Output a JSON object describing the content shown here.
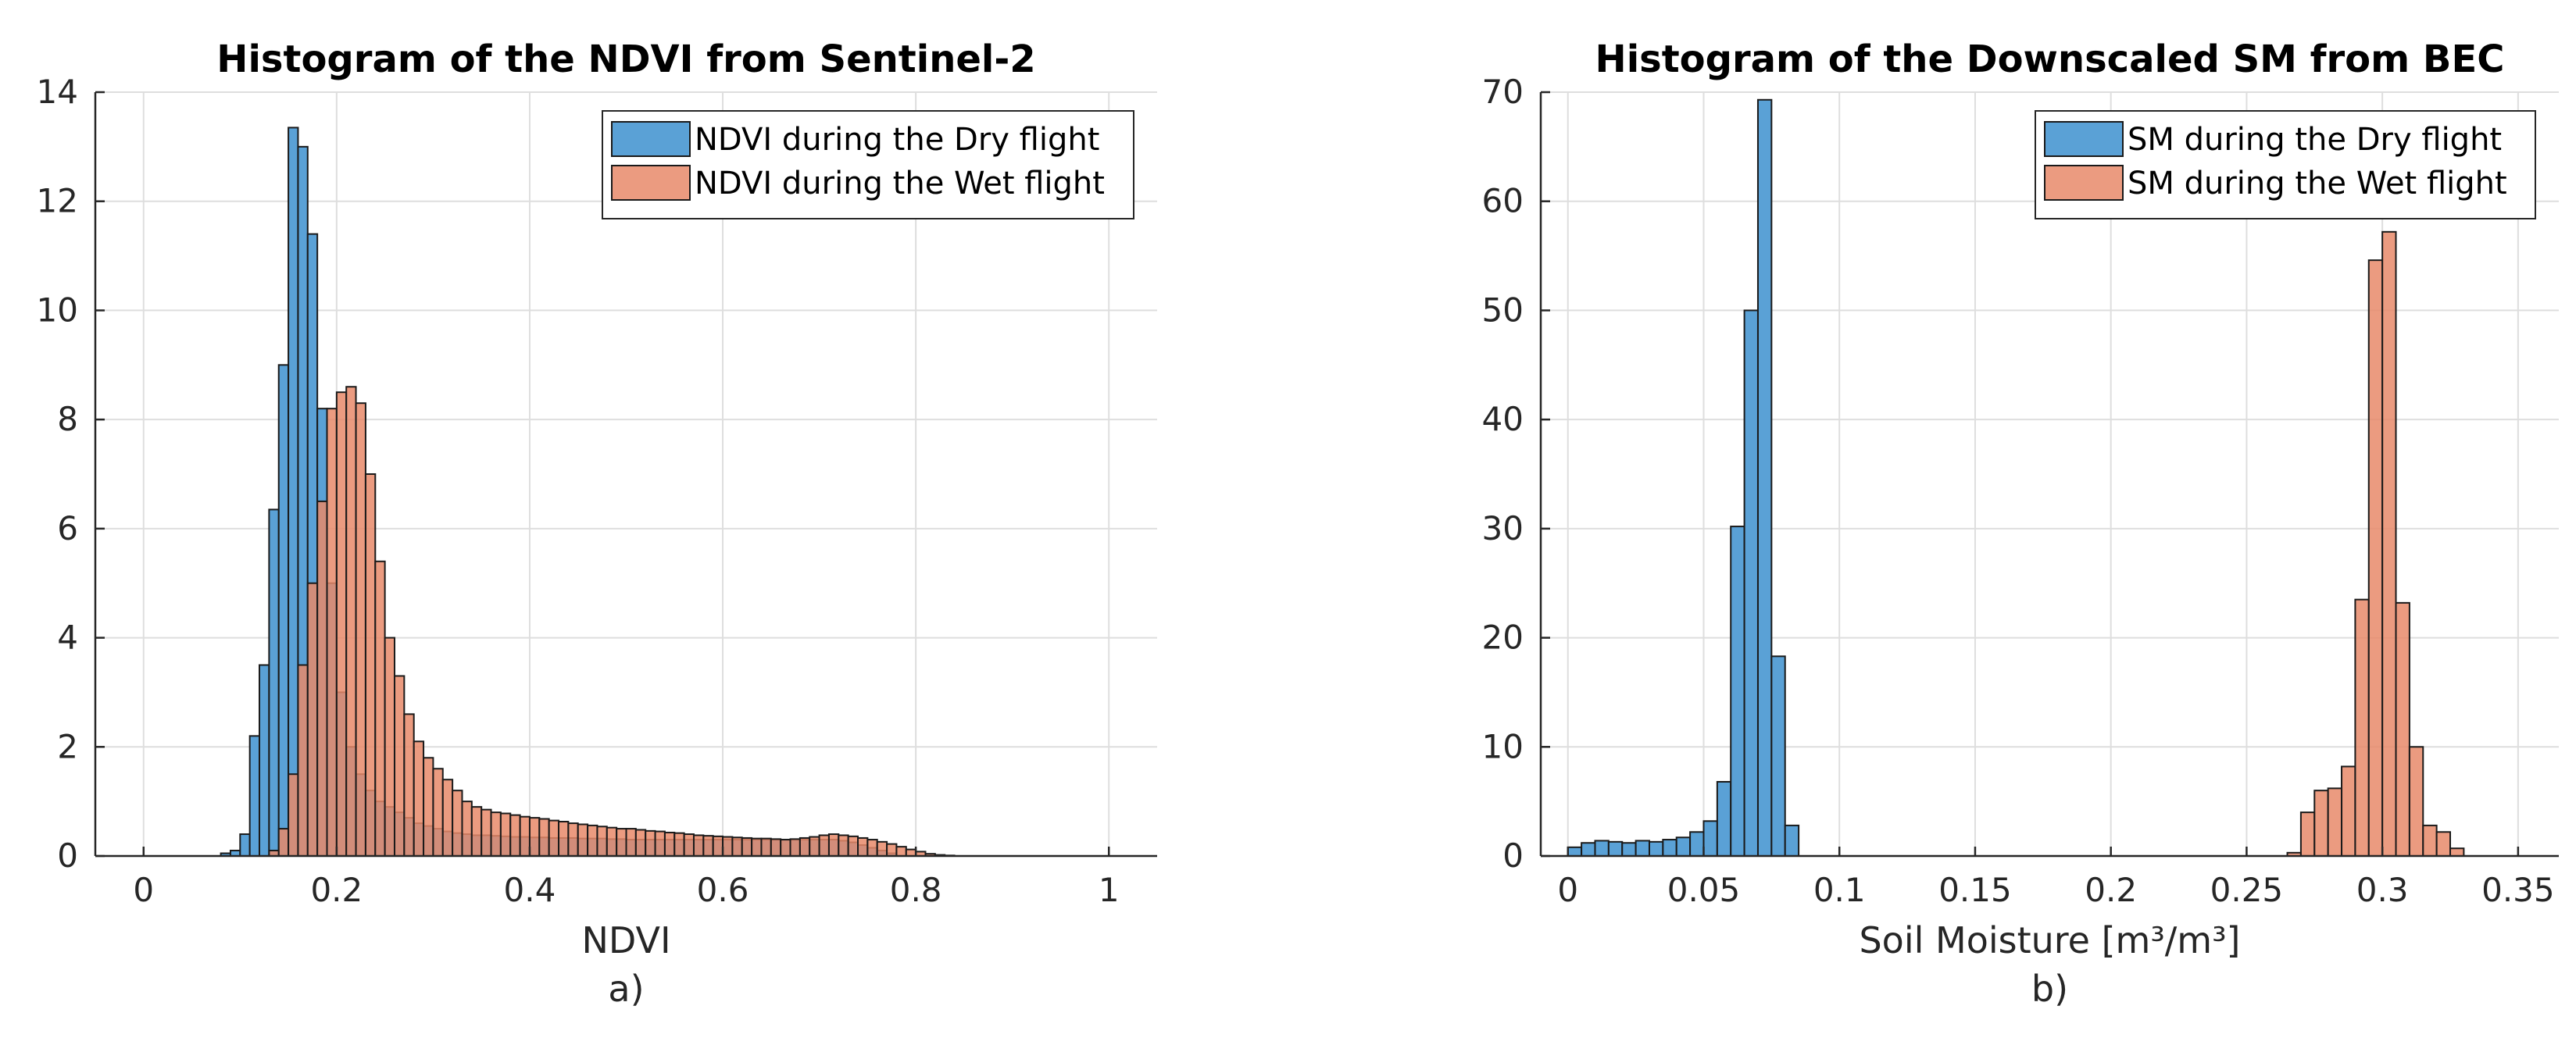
{
  "chart_data": [
    {
      "type": "bar",
      "chart_kind": "histogram",
      "title": "Histogram of the NDVI from Sentinel-2",
      "xlabel": "NDVI",
      "panel_label": "a)",
      "xlim": [
        -0.05,
        1.05
      ],
      "ylim": [
        0,
        14
      ],
      "xticks": [
        0,
        0.2,
        0.4,
        0.6,
        0.8,
        1
      ],
      "xtick_labels": [
        "0",
        "0.2",
        "0.4",
        "0.6",
        "0.8",
        "1"
      ],
      "yticks": [
        0,
        2,
        4,
        6,
        8,
        10,
        12,
        14
      ],
      "ytick_labels": [
        "0",
        "2",
        "4",
        "6",
        "8",
        "10",
        "12",
        "14"
      ],
      "grid": true,
      "legend_position": "top-right",
      "series": [
        {
          "name": "NDVI during the Dry flight",
          "color": "#5aa1d6",
          "bin_start": 0.08,
          "bin_width": 0.01,
          "values": [
            0.05,
            0.1,
            0.4,
            2.2,
            3.5,
            6.35,
            9.0,
            13.35,
            13.0,
            11.4,
            8.2,
            5.0,
            3.0,
            2.0,
            1.5,
            1.2,
            1.0,
            0.9,
            0.8,
            0.7,
            0.6,
            0.55,
            0.5,
            0.45,
            0.42,
            0.4,
            0.38,
            0.38,
            0.37,
            0.36,
            0.35,
            0.35,
            0.34,
            0.34,
            0.33,
            0.33,
            0.33,
            0.32,
            0.32,
            0.32,
            0.31,
            0.31,
            0.3,
            0.3,
            0.3,
            0.3,
            0.3,
            0.3,
            0.3,
            0.3,
            0.3,
            0.3,
            0.3,
            0.3,
            0.3,
            0.3,
            0.3,
            0.3,
            0.3,
            0.3,
            0.3,
            0.3,
            0.3,
            0.3,
            0.28,
            0.25,
            0.2,
            0.15,
            0.1,
            0.05
          ]
        },
        {
          "name": "NDVI during the Wet flight",
          "color": "#e8896a",
          "bin_start": 0.13,
          "bin_width": 0.01,
          "values": [
            0.1,
            0.5,
            1.5,
            3.5,
            5.0,
            6.5,
            8.2,
            8.5,
            8.6,
            8.3,
            7.0,
            5.4,
            4.0,
            3.3,
            2.6,
            2.1,
            1.8,
            1.6,
            1.4,
            1.2,
            1.0,
            0.9,
            0.85,
            0.8,
            0.78,
            0.75,
            0.72,
            0.7,
            0.68,
            0.65,
            0.63,
            0.6,
            0.58,
            0.56,
            0.54,
            0.52,
            0.5,
            0.5,
            0.48,
            0.46,
            0.45,
            0.43,
            0.42,
            0.4,
            0.38,
            0.37,
            0.36,
            0.35,
            0.34,
            0.33,
            0.32,
            0.32,
            0.31,
            0.3,
            0.31,
            0.33,
            0.35,
            0.38,
            0.4,
            0.38,
            0.36,
            0.33,
            0.3,
            0.26,
            0.22,
            0.17,
            0.12,
            0.08,
            0.04,
            0.02,
            0.01
          ]
        }
      ]
    },
    {
      "type": "bar",
      "chart_kind": "histogram",
      "title": "Histogram of the Downscaled SM from BEC",
      "xlabel": "Soil Moisture [m³/m³]",
      "panel_label": "b)",
      "xlim": [
        -0.01,
        0.365
      ],
      "ylim": [
        0,
        70
      ],
      "xticks": [
        0,
        0.05,
        0.1,
        0.15,
        0.2,
        0.25,
        0.3,
        0.35
      ],
      "xtick_labels": [
        "0",
        "0.05",
        "0.1",
        "0.15",
        "0.2",
        "0.25",
        "0.3",
        "0.35"
      ],
      "yticks": [
        0,
        10,
        20,
        30,
        40,
        50,
        60,
        70
      ],
      "ytick_labels": [
        "0",
        "10",
        "20",
        "30",
        "40",
        "50",
        "60",
        "70"
      ],
      "grid": true,
      "legend_position": "top-right",
      "series": [
        {
          "name": "SM during the Dry flight",
          "color": "#5aa1d6",
          "bin_start": 0.0,
          "bin_width": 0.005,
          "values": [
            0.8,
            1.2,
            1.4,
            1.3,
            1.2,
            1.4,
            1.3,
            1.5,
            1.7,
            2.2,
            3.2,
            6.8,
            30.2,
            50.0,
            69.3,
            18.3,
            2.8
          ]
        },
        {
          "name": "SM during the Wet flight",
          "color": "#e8896a",
          "bin_start": 0.265,
          "bin_width": 0.005,
          "values": [
            0.3,
            4.0,
            6.0,
            6.2,
            8.2,
            23.5,
            54.6,
            57.2,
            23.2,
            10.0,
            2.8,
            2.2,
            0.7
          ]
        }
      ]
    }
  ]
}
